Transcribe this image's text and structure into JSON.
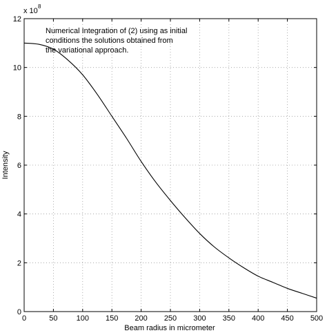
{
  "chart_data": {
    "type": "line",
    "title": "",
    "xlabel": "Beam radius in micrometer",
    "ylabel": "Intensity",
    "xlim": [
      0,
      500
    ],
    "ylim": [
      0,
      12
    ],
    "x_ticks": [
      0,
      50,
      100,
      150,
      200,
      250,
      300,
      350,
      400,
      450,
      500
    ],
    "y_ticks": [
      0,
      2,
      4,
      6,
      8,
      10,
      12
    ],
    "y_multiplier": {
      "base": "x 10",
      "exponent": "8"
    },
    "grid": true,
    "grid_style": "dotted",
    "annotation": {
      "lines": [
        "Numerical Integration of (2) using as initial",
        "conditions the solutions obtained from",
        "the variational approach."
      ]
    },
    "series": [
      {
        "color": "#000000",
        "x": [
          0,
          25,
          50,
          75,
          100,
          125,
          150,
          175,
          200,
          225,
          250,
          275,
          300,
          325,
          350,
          375,
          400,
          425,
          450,
          475,
          500
        ],
        "y": [
          11.0,
          10.95,
          10.75,
          10.3,
          9.7,
          8.9,
          8.0,
          7.1,
          6.15,
          5.3,
          4.55,
          3.85,
          3.2,
          2.65,
          2.2,
          1.8,
          1.45,
          1.2,
          0.95,
          0.75,
          0.55
        ]
      }
    ]
  }
}
